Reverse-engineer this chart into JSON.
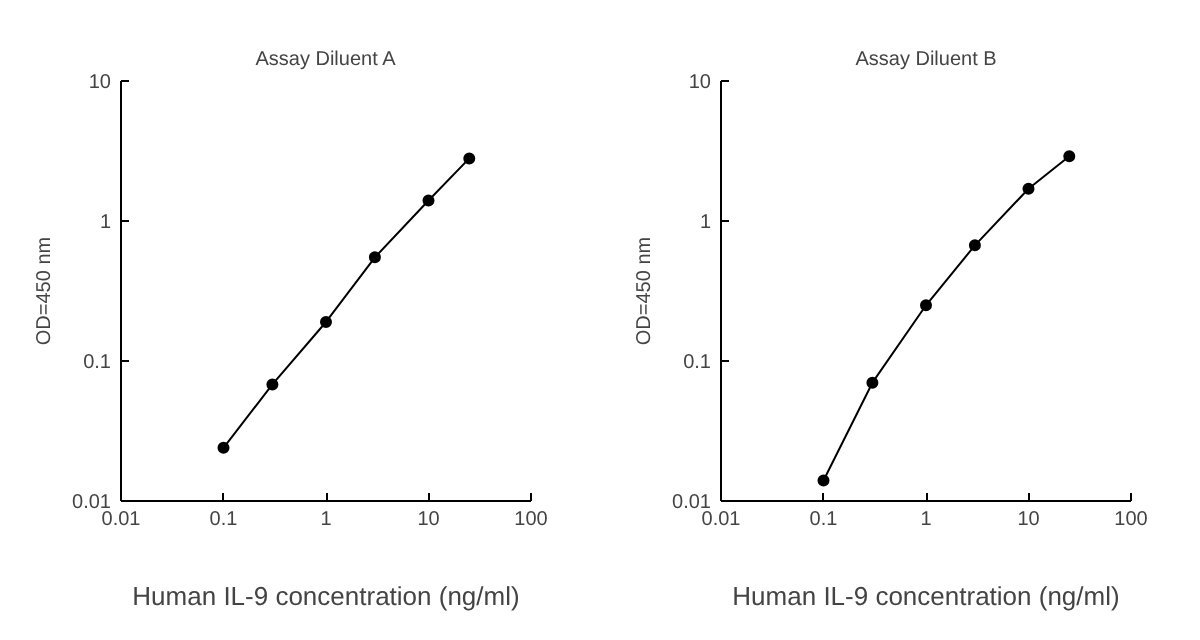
{
  "chart_data": [
    {
      "type": "line",
      "title": "Assay Diluent A",
      "xlabel": "Human IL-9 concentration (ng/ml)",
      "ylabel": "OD=450 nm",
      "log": "xy",
      "xlim": [
        0.01,
        100
      ],
      "ylim": [
        0.01,
        10
      ],
      "xticks": [
        0.01,
        0.1,
        1,
        10,
        100
      ],
      "yticks": [
        0.01,
        0.1,
        1,
        10
      ],
      "grid": false,
      "marker": "circle",
      "line_style": "solid",
      "x": [
        0.1,
        0.3,
        1,
        3,
        10,
        25
      ],
      "series": [
        {
          "color": "#000000",
          "values": [
            0.024,
            0.068,
            0.19,
            0.55,
            1.4,
            2.8
          ]
        }
      ]
    },
    {
      "type": "line",
      "title": "Assay Diluent B",
      "xlabel": "Human IL-9 concentration (ng/ml)",
      "ylabel": "OD=450 nm",
      "log": "xy",
      "xlim": [
        0.01,
        100
      ],
      "ylim": [
        0.01,
        10
      ],
      "xticks": [
        0.01,
        0.1,
        1,
        10,
        100
      ],
      "yticks": [
        0.01,
        0.1,
        1,
        10
      ],
      "grid": false,
      "marker": "circle",
      "line_style": "solid",
      "x": [
        0.1,
        0.3,
        1,
        3,
        10,
        25
      ],
      "series": [
        {
          "color": "#000000",
          "values": [
            0.014,
            0.07,
            0.25,
            0.67,
            1.7,
            2.9
          ]
        }
      ]
    }
  ]
}
